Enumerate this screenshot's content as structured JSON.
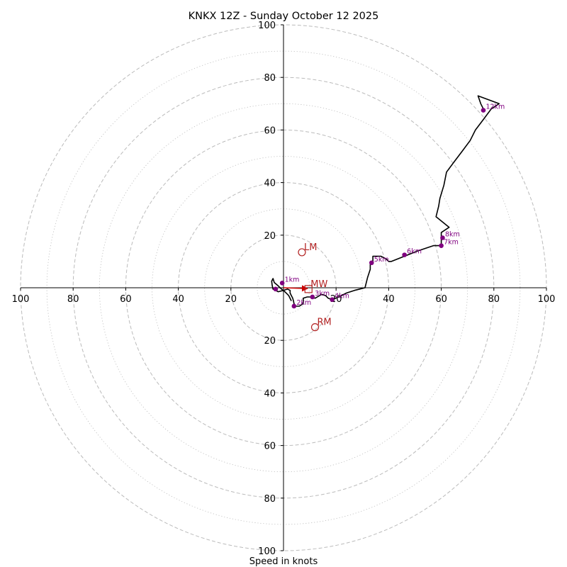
{
  "chart_data": {
    "type": "hodograph",
    "title": "KNKX 12Z - Sunday October 12 2025",
    "xlabel": "Speed in knots",
    "units": "knots",
    "axis_range": [
      -100,
      100
    ],
    "major_rings": [
      20,
      40,
      60,
      80,
      100
    ],
    "minor_rings": [
      10,
      30,
      50,
      70,
      90
    ],
    "x_tick_labels": [
      "100",
      "80",
      "60",
      "40",
      "20",
      "20",
      "40",
      "60",
      "80",
      "100"
    ],
    "y_tick_labels": [
      "100",
      "80",
      "60",
      "40",
      "20",
      "20",
      "40",
      "60",
      "80",
      "100"
    ],
    "profile": {
      "color": "#000000",
      "points": [
        [
          3,
          -5
        ],
        [
          2,
          -3
        ],
        [
          0.5,
          -1.5
        ],
        [
          -1,
          -0.3
        ],
        [
          -2,
          0.7
        ],
        [
          -3.5,
          2
        ],
        [
          -4,
          3.5
        ],
        [
          -4.5,
          2.5
        ],
        [
          -4.3,
          1
        ],
        [
          -4,
          -0.5
        ],
        [
          -2,
          -1.5
        ],
        [
          0,
          -1
        ],
        [
          1.5,
          -0.5
        ],
        [
          2.5,
          -1
        ],
        [
          2.5,
          -2
        ],
        [
          3,
          -3
        ],
        [
          3.5,
          -4
        ],
        [
          3.8,
          -5
        ],
        [
          4,
          -6
        ],
        [
          4.5,
          -7
        ],
        [
          6,
          -7
        ],
        [
          7.5,
          -6
        ],
        [
          7.5,
          -4
        ],
        [
          9,
          -3.5
        ],
        [
          11,
          -3.5
        ],
        [
          12,
          -4
        ],
        [
          14.5,
          -2.5
        ],
        [
          16,
          -3
        ],
        [
          17,
          -4
        ],
        [
          18.5,
          -4.5
        ],
        [
          21,
          -3.5
        ],
        [
          24,
          -2
        ],
        [
          27,
          -1
        ],
        [
          31,
          0
        ],
        [
          32,
          4
        ],
        [
          33,
          7
        ],
        [
          33,
          9
        ],
        [
          34,
          10
        ],
        [
          34,
          12
        ],
        [
          37,
          12
        ],
        [
          39,
          11
        ],
        [
          40,
          10
        ],
        [
          41,
          10
        ],
        [
          46,
          12
        ],
        [
          51,
          14
        ],
        [
          57,
          16
        ],
        [
          60,
          16
        ],
        [
          60,
          19
        ],
        [
          60,
          21
        ],
        [
          63,
          23
        ],
        [
          58,
          27
        ],
        [
          59,
          31
        ],
        [
          59.5,
          34
        ],
        [
          61,
          39
        ],
        [
          62,
          44
        ],
        [
          65,
          48
        ],
        [
          68,
          52
        ],
        [
          71,
          56
        ],
        [
          73,
          60
        ],
        [
          76,
          64
        ],
        [
          79,
          68
        ],
        [
          82,
          70
        ],
        [
          74,
          73
        ],
        [
          75,
          70
        ],
        [
          76,
          68
        ]
      ]
    },
    "height_markers": [
      {
        "label": "",
        "u": -3,
        "v": -0.5
      },
      {
        "label": "1km",
        "u": -0.5,
        "v": 1.8
      },
      {
        "label": "2km",
        "u": 4,
        "v": -7
      },
      {
        "label": "3km",
        "u": 11,
        "v": -3.5
      },
      {
        "label": "4km",
        "u": 18.5,
        "v": -4.5
      },
      {
        "label": "5km",
        "u": 33.5,
        "v": 9.5
      },
      {
        "label": "6km",
        "u": 46,
        "v": 12.5
      },
      {
        "label": "7km",
        "u": 60,
        "v": 16
      },
      {
        "label": "8km",
        "u": 60.5,
        "v": 19
      },
      {
        "label": "12km",
        "u": 76,
        "v": 67.5
      }
    ],
    "storm_motion": [
      {
        "label": "LM",
        "u": 7,
        "v": 13.5,
        "marker": "circle"
      },
      {
        "label": "MW",
        "u": 9.5,
        "v": -0.5,
        "marker": "square"
      },
      {
        "label": "RM",
        "u": 12,
        "v": -15,
        "marker": "circle"
      }
    ],
    "shear_vector": {
      "from": [
        0,
        0
      ],
      "to": [
        9,
        -0.3
      ]
    },
    "colors": {
      "ring": "#bbbbbb",
      "axis": "#000000",
      "profile": "#000000",
      "height_marker": "#800080",
      "storm_motion": "#b22222",
      "shear": "#cc0000"
    }
  }
}
